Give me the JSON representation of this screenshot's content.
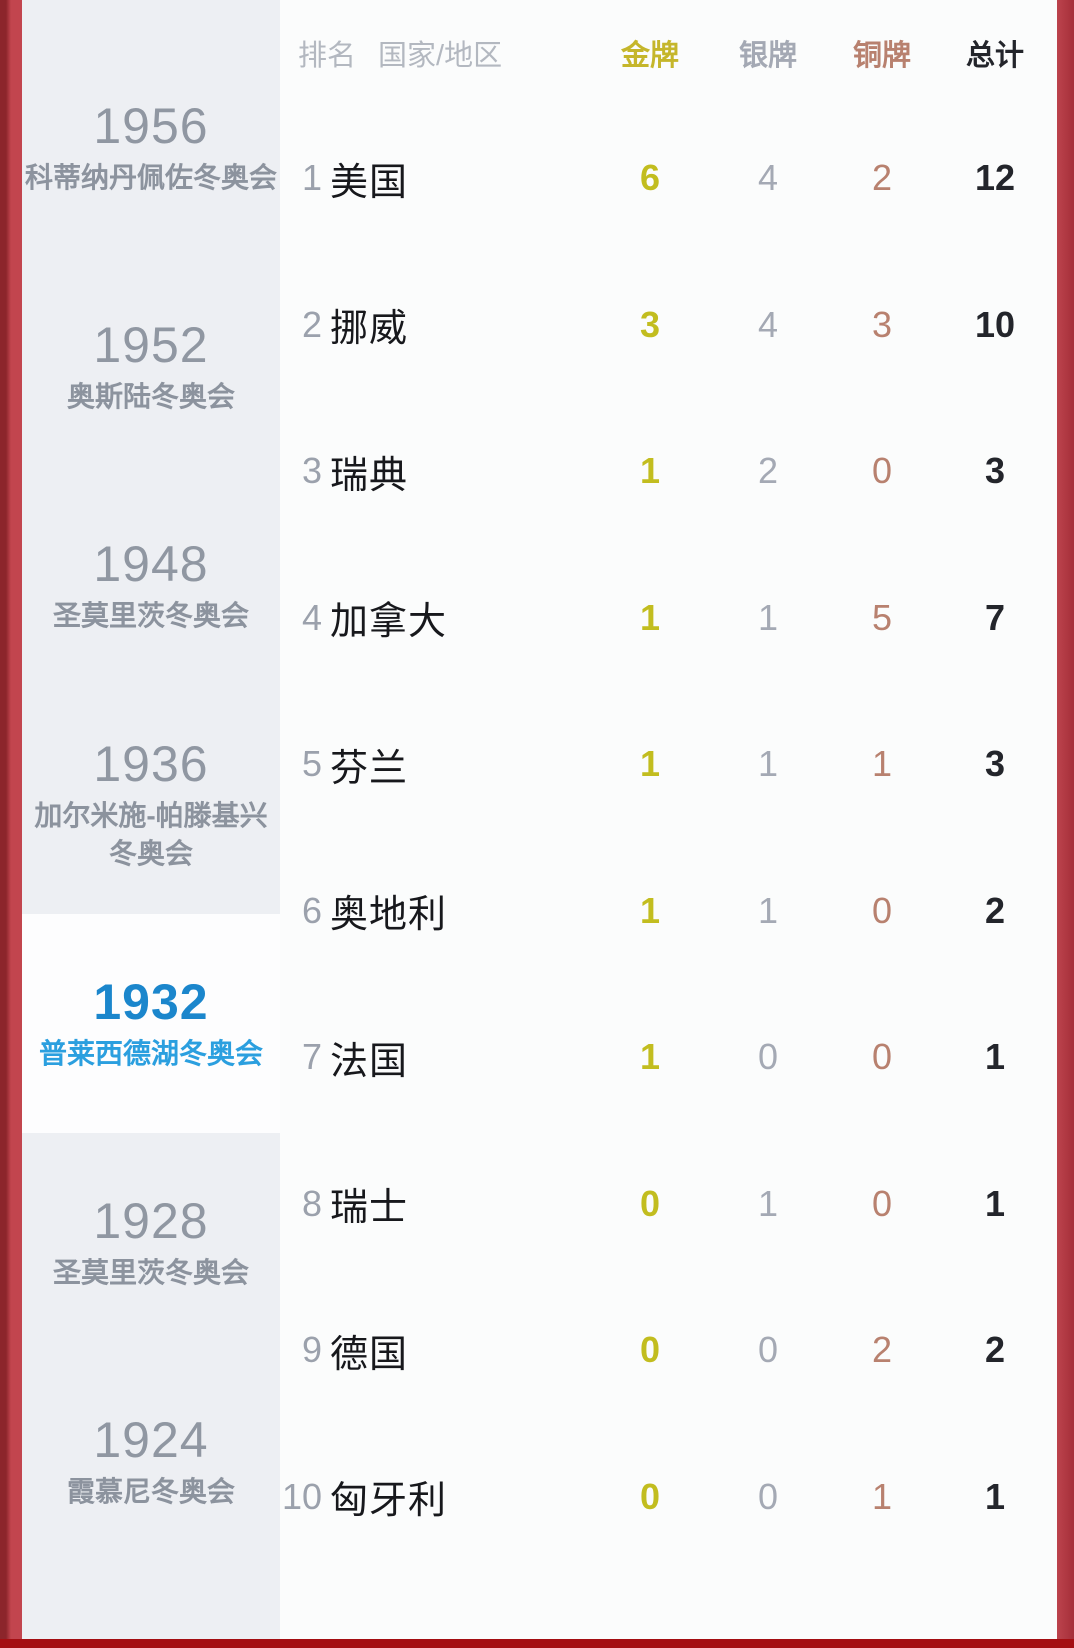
{
  "colors": {
    "red-left-dark": "#8c252b",
    "red-left": "#c2454e",
    "red-right-light": "#bc434d",
    "red-right-dark": "#a52f39",
    "red-bottom": "#a40e12",
    "sidebar-bg": "#edeff3",
    "selected-bg": "#fdfdfe",
    "main-bg": "#fbfcfc",
    "header-gray": "#b3b8c0",
    "gold": "#c5b62b",
    "gold-value": "#c2bd1f",
    "silver": "#a4a9b4",
    "bronze": "#b8816f",
    "total": "#23252b",
    "rank-gray": "#9ba1ac",
    "country": "#17181c",
    "year-gray": "#9097a2",
    "label-gray": "#8c939e",
    "selected-year-blue": "#1b86cc",
    "selected-label-blue": "#2b9fdf"
  },
  "sidebar": {
    "items": [
      {
        "year": "1956",
        "name": "科蒂纳丹佩佐冬奥会",
        "selected": false
      },
      {
        "year": "1952",
        "name": "奥斯陆冬奥会",
        "selected": false
      },
      {
        "year": "1948",
        "name": "圣莫里茨冬奥会",
        "selected": false
      },
      {
        "year": "1936",
        "name": "加尔米施-帕滕基兴冬奥会",
        "selected": false
      },
      {
        "year": "1932",
        "name": "普莱西德湖冬奥会",
        "selected": true
      },
      {
        "year": "1928",
        "name": "圣莫里茨冬奥会",
        "selected": false
      },
      {
        "year": "1924",
        "name": "霞慕尼冬奥会",
        "selected": false
      }
    ]
  },
  "table": {
    "headers": {
      "rank": "排名",
      "country": "国家/地区",
      "gold": "金牌",
      "silver": "银牌",
      "bronze": "铜牌",
      "total": "总计"
    },
    "rows": [
      {
        "rank": "1",
        "country": "美国",
        "gold": "6",
        "silver": "4",
        "bronze": "2",
        "total": "12"
      },
      {
        "rank": "2",
        "country": "挪威",
        "gold": "3",
        "silver": "4",
        "bronze": "3",
        "total": "10"
      },
      {
        "rank": "3",
        "country": "瑞典",
        "gold": "1",
        "silver": "2",
        "bronze": "0",
        "total": "3"
      },
      {
        "rank": "4",
        "country": "加拿大",
        "gold": "1",
        "silver": "1",
        "bronze": "5",
        "total": "7"
      },
      {
        "rank": "5",
        "country": "芬兰",
        "gold": "1",
        "silver": "1",
        "bronze": "1",
        "total": "3"
      },
      {
        "rank": "6",
        "country": "奥地利",
        "gold": "1",
        "silver": "1",
        "bronze": "0",
        "total": "2"
      },
      {
        "rank": "7",
        "country": "法国",
        "gold": "1",
        "silver": "0",
        "bronze": "0",
        "total": "1"
      },
      {
        "rank": "8",
        "country": "瑞士",
        "gold": "0",
        "silver": "1",
        "bronze": "0",
        "total": "1"
      },
      {
        "rank": "9",
        "country": "德国",
        "gold": "0",
        "silver": "0",
        "bronze": "2",
        "total": "2"
      },
      {
        "rank": "10",
        "country": "匈牙利",
        "gold": "0",
        "silver": "0",
        "bronze": "1",
        "total": "1"
      }
    ]
  }
}
